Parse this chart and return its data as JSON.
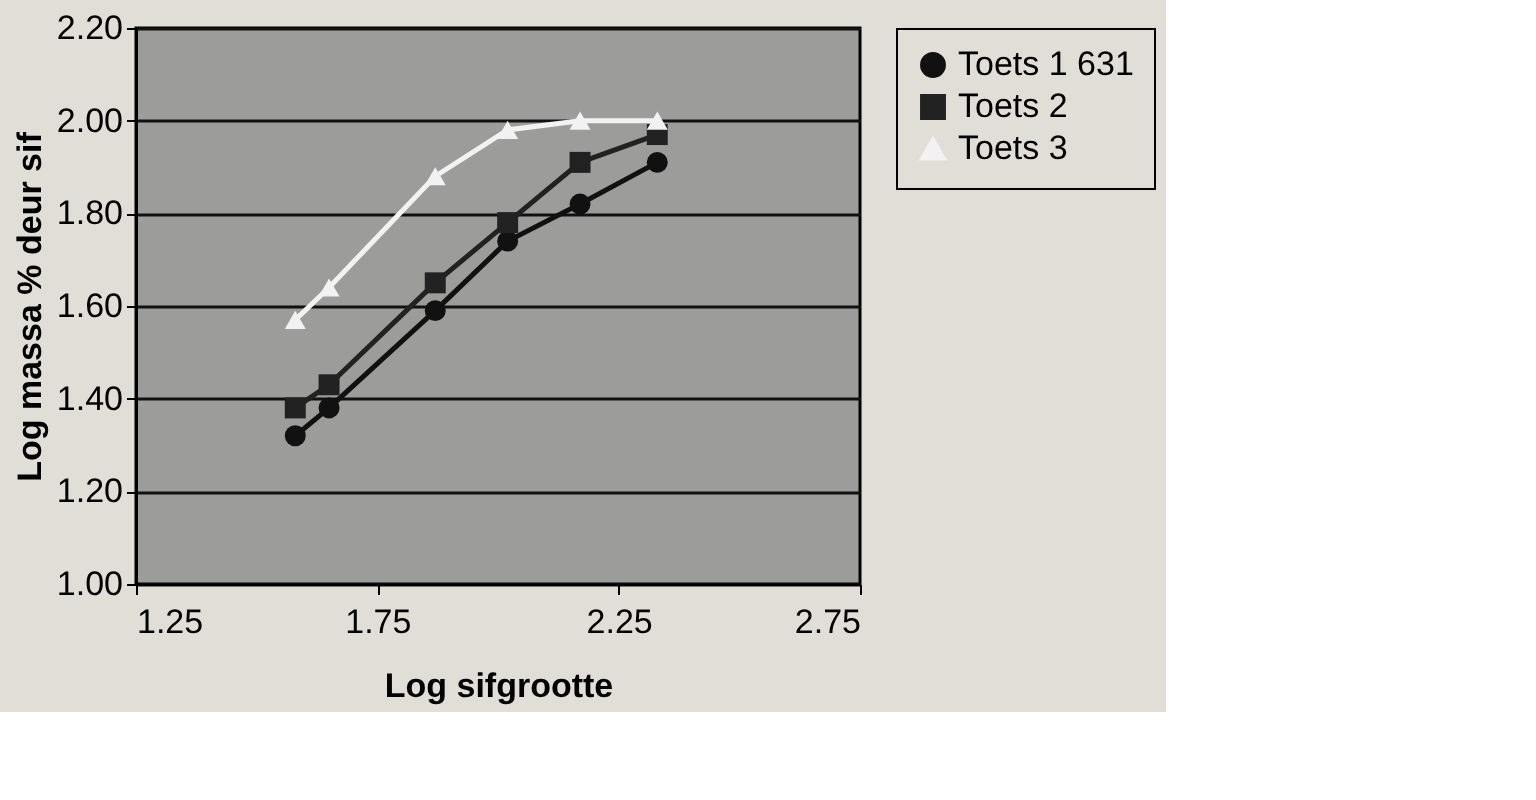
{
  "chart_data": {
    "type": "line",
    "xlabel": "Log sifgrootte",
    "ylabel": "Log massa % deur sif",
    "x": [
      1.58,
      1.65,
      1.87,
      2.02,
      2.17,
      2.33
    ],
    "series": [
      {
        "name": "Toets 1 631",
        "color": "#111111",
        "marker": "circle",
        "values": [
          1.32,
          1.38,
          1.59,
          1.74,
          1.82,
          1.91
        ]
      },
      {
        "name": "Toets 2",
        "color": "#222222",
        "marker": "square",
        "values": [
          1.38,
          1.43,
          1.65,
          1.78,
          1.91,
          1.97
        ]
      },
      {
        "name": "Toets 3",
        "color": "#f2f2f2",
        "marker": "triangle",
        "values": [
          1.57,
          1.64,
          1.88,
          1.98,
          2.0,
          2.0
        ]
      }
    ],
    "xlim": [
      1.25,
      2.75
    ],
    "xticks": [
      1.25,
      1.75,
      2.25,
      2.75
    ],
    "ylim": [
      1.0,
      2.2
    ],
    "yticks": [
      {
        "value": 1.0,
        "label": "1.00"
      },
      {
        "value": 1.2,
        "label": "1.20"
      },
      {
        "value": 1.4,
        "label": "1.40"
      },
      {
        "value": 1.6,
        "label": "1.60"
      },
      {
        "value": 1.8,
        "label": "1.80"
      },
      {
        "value": 2.0,
        "label": "2.00"
      },
      {
        "value": 2.2,
        "label": "2.20"
      }
    ],
    "grid": "y",
    "legend": "right",
    "line_style": "solid"
  }
}
